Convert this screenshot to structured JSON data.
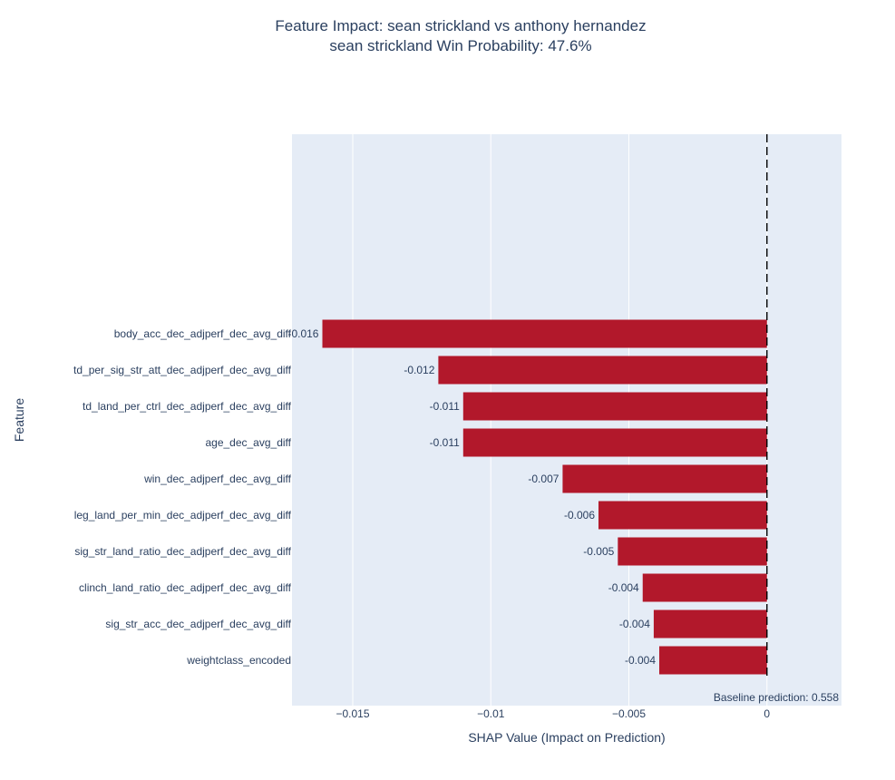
{
  "chart_data": {
    "type": "bar",
    "orientation": "horizontal",
    "title": "Feature Impact: sean strickland vs anthony hernandez",
    "subtitle": "sean strickland Win Probability: 47.6%",
    "xlabel": "SHAP Value (Impact on Prediction)",
    "ylabel": "Feature",
    "xlim": [
      -0.0172,
      0.0027
    ],
    "xticks": [
      -0.015,
      -0.01,
      -0.005,
      0
    ],
    "xtick_labels": [
      "−0.015",
      "−0.01",
      "−0.005",
      "0"
    ],
    "categories": [
      "body_acc_dec_adjperf_dec_avg_diff",
      "td_per_sig_str_att_dec_adjperf_dec_avg_diff",
      "td_land_per_ctrl_dec_adjperf_dec_avg_diff",
      "age_dec_avg_diff",
      "win_dec_adjperf_dec_avg_diff",
      "leg_land_per_min_dec_adjperf_dec_avg_diff",
      "sig_str_land_ratio_dec_adjperf_dec_avg_diff",
      "clinch_land_ratio_dec_adjperf_dec_avg_diff",
      "sig_str_acc_dec_adjperf_dec_avg_diff",
      "weightclass_encoded"
    ],
    "values": [
      -0.0161,
      -0.0119,
      -0.011,
      -0.011,
      -0.0074,
      -0.0061,
      -0.0054,
      -0.0045,
      -0.0041,
      -0.0039
    ],
    "value_labels": [
      "-0.016",
      "-0.012",
      "-0.011",
      "-0.011",
      "-0.007",
      "-0.006",
      "-0.005",
      "-0.004",
      "-0.004",
      "-0.004"
    ],
    "bar_color": "#b2182b",
    "plot_bg": "#e5ecf6",
    "reference_line": {
      "x": 0,
      "style": "dashed"
    },
    "annotation": "Baseline prediction: 0.558"
  }
}
